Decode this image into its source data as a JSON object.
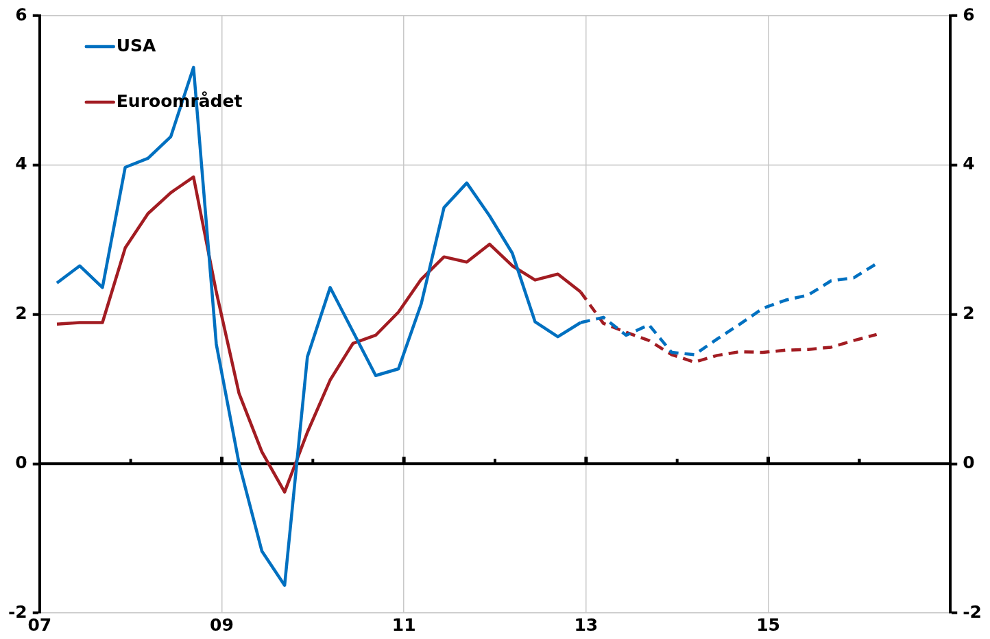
{
  "chart_data": {
    "type": "line",
    "xlim": [
      2007,
      2017
    ],
    "xticks": [
      {
        "value": 2007,
        "label": "07"
      },
      {
        "value": 2008,
        "label": null
      },
      {
        "value": 2009,
        "label": "09"
      },
      {
        "value": 2010,
        "label": null
      },
      {
        "value": 2011,
        "label": "11"
      },
      {
        "value": 2012,
        "label": null
      },
      {
        "value": 2013,
        "label": "13"
      },
      {
        "value": 2014,
        "label": null
      },
      {
        "value": 2015,
        "label": "15"
      },
      {
        "value": 2016,
        "label": null
      }
    ],
    "ylim": [
      -2,
      6
    ],
    "yticks": [
      -2,
      0,
      2,
      4,
      6
    ],
    "y2lim": [
      -2,
      6
    ],
    "y2ticks": [
      -2,
      0,
      2,
      4,
      6
    ],
    "grid": true,
    "legend": "top left",
    "line_style": "solid",
    "marker": "none",
    "ref_lines": [
      {
        "axis": "y",
        "value": 0,
        "color": "#000000"
      }
    ],
    "series": [
      {
        "name": "USA",
        "color": "#0070c0",
        "x": [
          2007.19,
          2007.44,
          2007.69,
          2007.94,
          2008.19,
          2008.44,
          2008.69,
          2008.94,
          2009.19,
          2009.44,
          2009.69,
          2009.94,
          2010.19,
          2010.44,
          2010.69,
          2010.94,
          2011.19,
          2011.44,
          2011.69,
          2011.94,
          2012.19,
          2012.44,
          2012.69,
          2012.94
        ],
        "values": [
          2.42,
          2.65,
          2.36,
          3.97,
          4.09,
          4.38,
          5.31,
          1.6,
          0.0,
          -1.17,
          -1.63,
          1.43,
          2.36,
          1.77,
          1.18,
          1.27,
          2.14,
          3.43,
          3.76,
          3.32,
          2.82,
          1.9,
          1.7,
          1.89
        ]
      },
      {
        "name": "Euroområdet",
        "color": "#a21c22",
        "x": [
          2007.19,
          2007.44,
          2007.69,
          2007.94,
          2008.19,
          2008.44,
          2008.69,
          2008.94,
          2009.19,
          2009.44,
          2009.69,
          2009.94,
          2010.19,
          2010.44,
          2010.69,
          2010.94,
          2011.19,
          2011.44,
          2011.69,
          2011.94,
          2012.19,
          2012.44,
          2012.69,
          2012.94
        ],
        "values": [
          1.87,
          1.89,
          1.89,
          2.89,
          3.35,
          3.63,
          3.84,
          2.3,
          0.94,
          0.16,
          -0.38,
          0.42,
          1.12,
          1.61,
          1.72,
          2.03,
          2.47,
          2.77,
          2.7,
          2.94,
          2.65,
          2.46,
          2.54,
          2.3
        ]
      },
      {
        "color": "#0070c0",
        "line_style": "dashed",
        "x": [
          2012.94,
          2013.19,
          2013.44,
          2013.69,
          2013.94,
          2014.19,
          2014.44,
          2014.69,
          2014.94,
          2015.19,
          2015.44,
          2015.69,
          2015.94,
          2016.19
        ],
        "values": [
          1.89,
          1.96,
          1.72,
          1.86,
          1.49,
          1.46,
          1.67,
          1.87,
          2.08,
          2.19,
          2.26,
          2.45,
          2.49,
          2.68
        ]
      },
      {
        "color": "#a21c22",
        "line_style": "dashed",
        "x": [
          2012.94,
          2013.19,
          2013.44,
          2013.69,
          2013.94,
          2014.19,
          2014.44,
          2014.69,
          2014.94,
          2015.19,
          2015.44,
          2015.69,
          2015.94,
          2016.19
        ],
        "values": [
          2.3,
          1.88,
          1.76,
          1.65,
          1.46,
          1.36,
          1.45,
          1.5,
          1.49,
          1.52,
          1.53,
          1.56,
          1.65,
          1.73
        ]
      }
    ]
  }
}
